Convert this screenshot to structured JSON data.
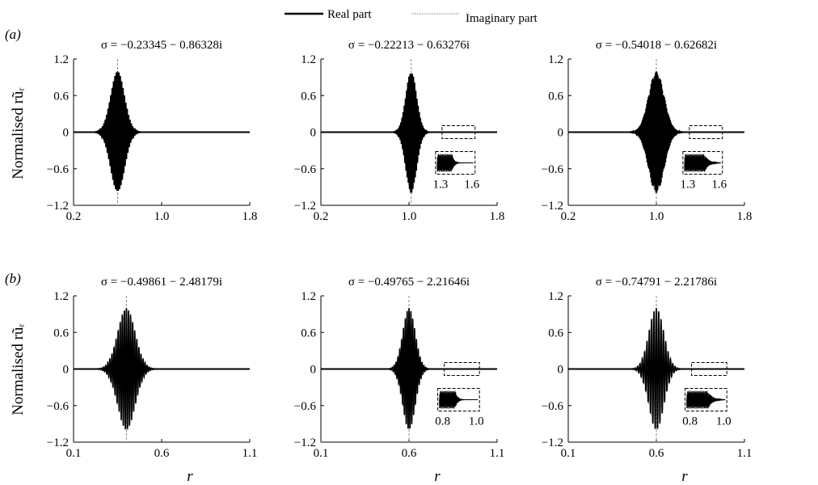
{
  "legend": {
    "real_label": "Real part",
    "imag_label": "Imaginary part"
  },
  "rows": [
    {
      "label": "(a)",
      "ylabel": "Normalised rũᵣ"
    },
    {
      "label": "(b)",
      "ylabel": "Normalised rũᵣ"
    }
  ],
  "xlabel": "r",
  "chart_data": [
    {
      "type": "line",
      "row": 0,
      "title": "σ = −0.23345 − 0.86328i",
      "xlim": [
        0.2,
        1.8
      ],
      "xticks": [
        "0.2",
        "1.0",
        "1.8"
      ],
      "ylim": [
        -1.2,
        1.2
      ],
      "yticks": [
        "1.2",
        "0.6",
        "0",
        "−0.6",
        "−1.2"
      ],
      "packet": {
        "center": 0.6,
        "width": 0.09,
        "freq": 80
      },
      "marker_x": 0.6,
      "inset": null,
      "series": [
        {
          "name": "Real part"
        },
        {
          "name": "Imaginary part"
        }
      ]
    },
    {
      "type": "line",
      "row": 0,
      "title": "σ = −0.22213 − 0.63276i",
      "xlim": [
        0.2,
        1.8
      ],
      "xticks": [
        "0.2",
        "1.0",
        "1.8"
      ],
      "ylim": [
        -1.2,
        1.2
      ],
      "yticks": [
        "1.2",
        "0.6",
        "0",
        "−0.6",
        "−1.2"
      ],
      "packet": {
        "center": 1.02,
        "width": 0.07,
        "freq": 95
      },
      "marker_x": 1.02,
      "inset": {
        "box_x": [
          1.3,
          1.6
        ],
        "ticks": [
          "1.3",
          "1.6"
        ],
        "noisy": false
      },
      "series": [
        {
          "name": "Real part"
        },
        {
          "name": "Imaginary part"
        }
      ]
    },
    {
      "type": "line",
      "row": 0,
      "title": "σ = −0.54018 − 0.62682i",
      "xlim": [
        0.2,
        1.8
      ],
      "xticks": [
        "0.2",
        "1.0",
        "1.8"
      ],
      "ylim": [
        -1.2,
        1.2
      ],
      "yticks": [
        "1.2",
        "0.6",
        "0",
        "−0.6",
        "−1.2"
      ],
      "packet": {
        "center": 1.0,
        "width": 0.1,
        "freq": 150
      },
      "marker_x": 1.0,
      "inset": {
        "box_x": [
          1.3,
          1.6
        ],
        "ticks": [
          "1.3",
          "1.6"
        ],
        "noisy": true
      },
      "series": [
        {
          "name": "Real part"
        },
        {
          "name": "Imaginary part"
        }
      ]
    },
    {
      "type": "line",
      "row": 1,
      "title": "σ = −0.49861 − 2.48179i",
      "xlim": [
        0.1,
        1.1
      ],
      "xticks": [
        "0.1",
        "0.6",
        "1.1"
      ],
      "ylim": [
        -1.2,
        1.2
      ],
      "yticks": [
        "1.2",
        "0.6",
        "0",
        "−0.6",
        "−1.2"
      ],
      "packet": {
        "center": 0.4,
        "width": 0.07,
        "freq": 85
      },
      "marker_x": 0.4,
      "inset": null,
      "series": [
        {
          "name": "Real part"
        },
        {
          "name": "Imaginary part"
        }
      ]
    },
    {
      "type": "line",
      "row": 1,
      "title": "σ = −0.49765 − 2.21646i",
      "xlim": [
        0.1,
        1.1
      ],
      "xticks": [
        "0.1",
        "0.6",
        "1.1"
      ],
      "ylim": [
        -1.2,
        1.2
      ],
      "yticks": [
        "1.2",
        "0.6",
        "0",
        "−0.6",
        "−1.2"
      ],
      "packet": {
        "center": 0.6,
        "width": 0.05,
        "freq": 95
      },
      "marker_x": 0.6,
      "inset": {
        "box_x": [
          0.8,
          1.0
        ],
        "ticks": [
          "0.8",
          "1.0"
        ],
        "noisy": false
      },
      "series": [
        {
          "name": "Real part"
        },
        {
          "name": "Imaginary part"
        }
      ]
    },
    {
      "type": "line",
      "row": 1,
      "title": "σ = −0.74791 − 2.21786i",
      "xlim": [
        0.1,
        1.1
      ],
      "xticks": [
        "0.1",
        "0.6",
        "1.1"
      ],
      "ylim": [
        -1.2,
        1.2
      ],
      "yticks": [
        "1.2",
        "0.6",
        "0",
        "−0.6",
        "−1.2"
      ],
      "packet": {
        "center": 0.6,
        "width": 0.06,
        "freq": 75
      },
      "marker_x": 0.6,
      "inset": {
        "box_x": [
          0.8,
          1.0
        ],
        "ticks": [
          "0.8",
          "1.0"
        ],
        "noisy": true
      },
      "series": [
        {
          "name": "Real part"
        },
        {
          "name": "Imaginary part"
        }
      ]
    }
  ]
}
